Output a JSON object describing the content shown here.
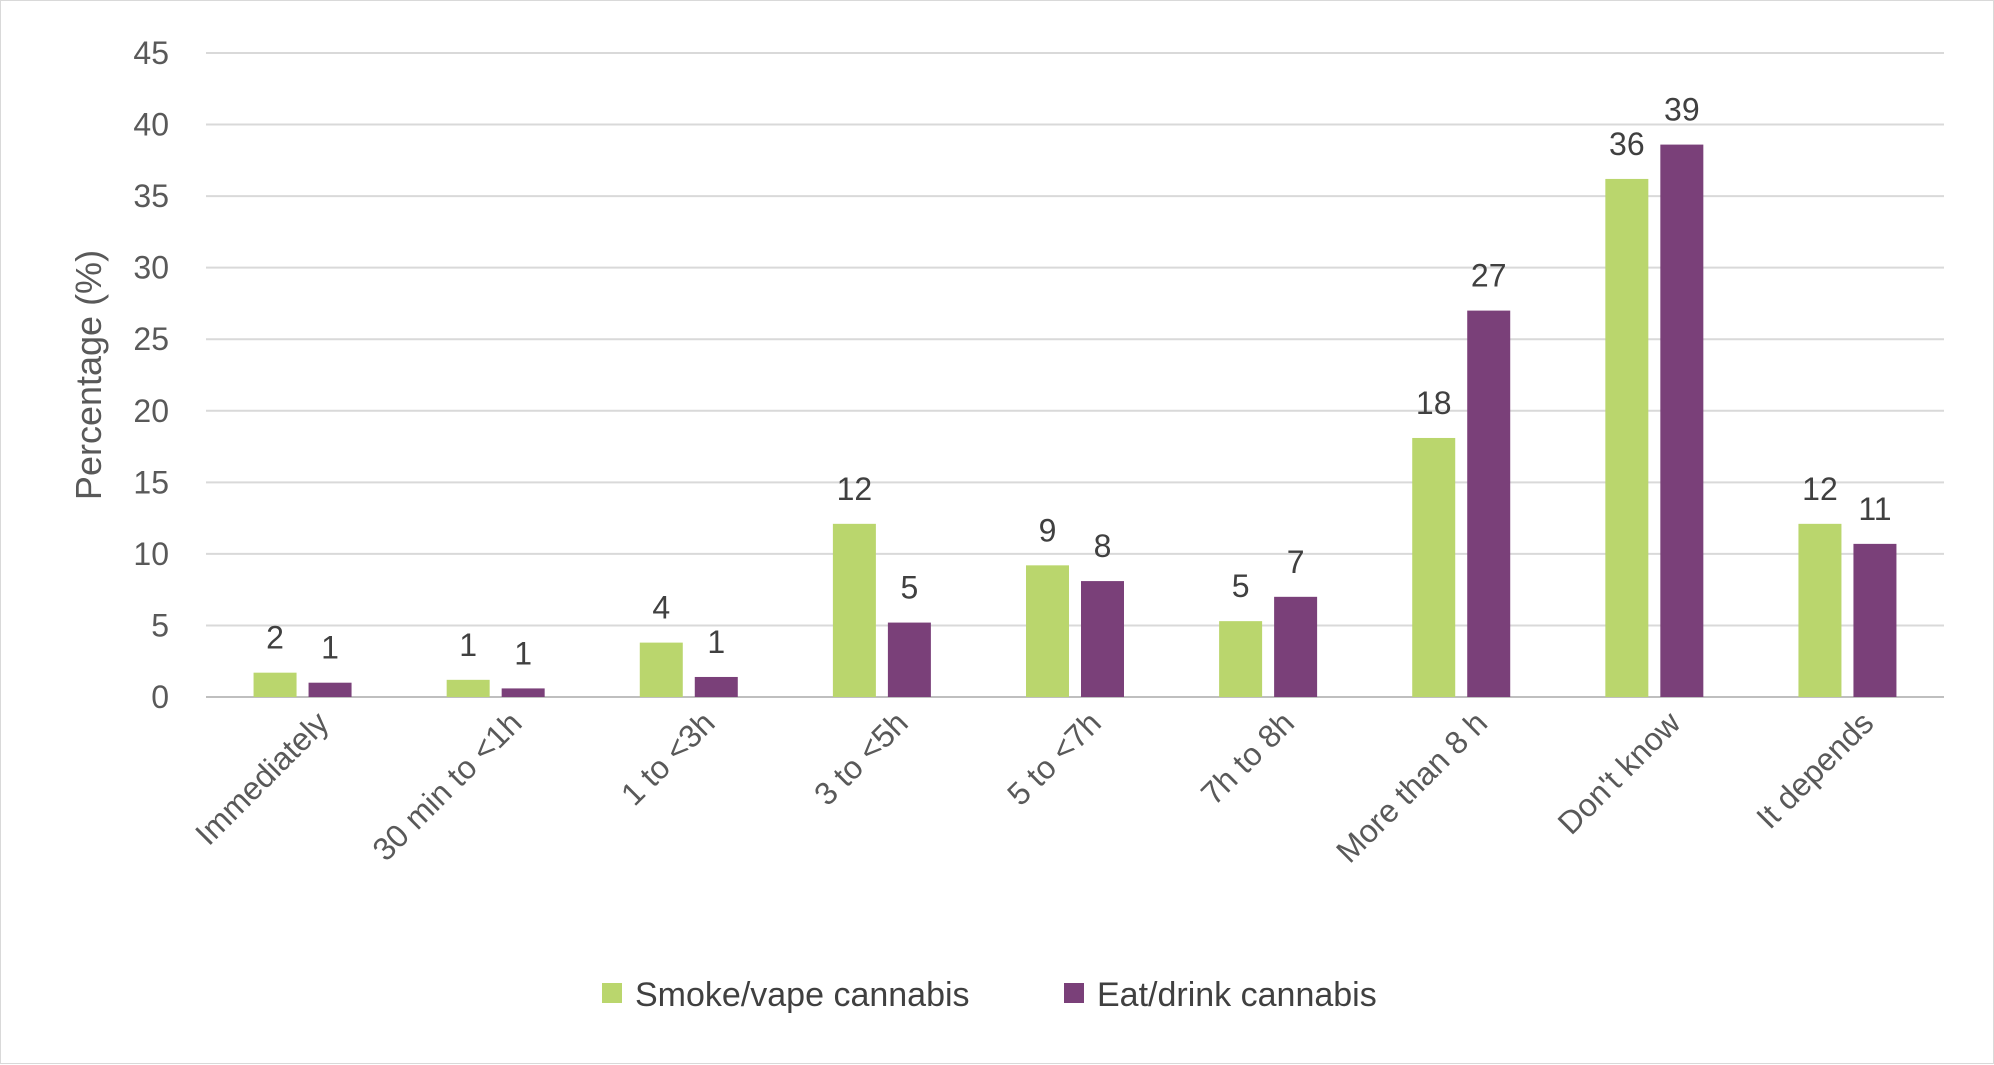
{
  "chart_data": {
    "type": "bar",
    "title": "",
    "xlabel": "",
    "ylabel": "Percentage (%)",
    "ylim": [
      0,
      45
    ],
    "yticks": [
      0,
      5,
      10,
      15,
      20,
      25,
      30,
      35,
      40,
      45
    ],
    "grid": true,
    "legend_position": "bottom",
    "categories": [
      "Immediately",
      "30 min to <1h",
      "1 to <3h",
      "3 to <5h",
      "5 to <7h",
      "7h to 8h",
      "More than 8 h",
      "Don't know",
      "It depends"
    ],
    "series": [
      {
        "name": "Smoke/vape cannabis",
        "color": "#bad66d",
        "values": [
          1.7,
          1.2,
          3.8,
          12.1,
          9.2,
          5.3,
          18.1,
          36.2,
          12.1
        ],
        "labels": [
          "2",
          "1",
          "4",
          "12",
          "9",
          "5",
          "18",
          "36",
          "12"
        ]
      },
      {
        "name": "Eat/drink cannabis",
        "color": "#7a4079",
        "values": [
          1.0,
          0.6,
          1.4,
          5.2,
          8.1,
          7.0,
          27.0,
          38.6,
          10.7
        ],
        "labels": [
          "1",
          "1",
          "1",
          "5",
          "8",
          "7",
          "27",
          "39",
          "11"
        ]
      }
    ]
  }
}
